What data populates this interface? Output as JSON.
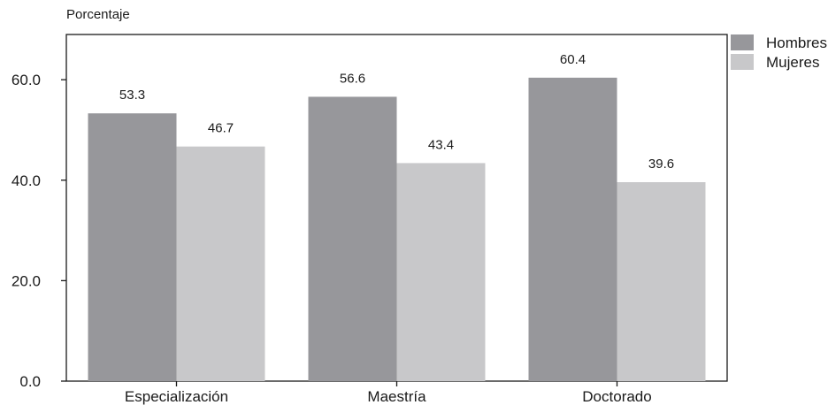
{
  "chart_data": {
    "type": "bar",
    "ylabel": "Porcentaje",
    "categories": [
      "Especialización",
      "Maestría",
      "Doctorado"
    ],
    "series": [
      {
        "name": "Hombres",
        "values": [
          53.3,
          56.6,
          60.4
        ],
        "color": "#97979b"
      },
      {
        "name": "Mujeres",
        "values": [
          46.7,
          43.4,
          39.6
        ],
        "color": "#c8c8ca"
      }
    ],
    "value_labels": [
      [
        "53.3",
        "56.6",
        "60.4"
      ],
      [
        "46.7",
        "43.4",
        "39.6"
      ]
    ],
    "yticks": [
      0,
      20,
      40,
      60
    ],
    "ytick_labels": [
      "0.0",
      "20.0",
      "40.0",
      "60.0"
    ],
    "ylim": [
      0,
      69
    ],
    "grid": false,
    "legend_position": "top-right"
  }
}
